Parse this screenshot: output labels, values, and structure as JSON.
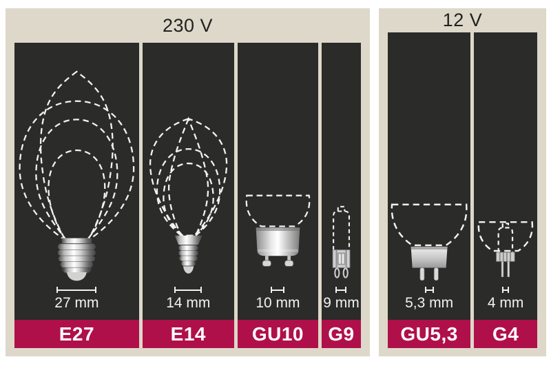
{
  "panels": [
    {
      "voltage_label": "230 V",
      "columns": [
        {
          "code": "E27",
          "size_label": "27 mm",
          "socket": "e27"
        },
        {
          "code": "E14",
          "size_label": "14 mm",
          "socket": "e14"
        },
        {
          "code": "GU10",
          "size_label": "10 mm",
          "socket": "gu10"
        },
        {
          "code": "G9",
          "size_label": "9 mm",
          "socket": "g9"
        }
      ]
    },
    {
      "voltage_label": "12 V",
      "columns": [
        {
          "code": "GU5,3",
          "size_label": "5,3 mm",
          "socket": "gu53"
        },
        {
          "code": "G4",
          "size_label": "4 mm",
          "socket": "g4"
        }
      ]
    }
  ],
  "colors": {
    "background": "#ffffff",
    "panel_beige": "#ddd8c9",
    "column_dark": "#2b2b29",
    "label_crimson": "#b01049",
    "text_light": "#f2f2f2",
    "text_dark": "#21211f"
  }
}
